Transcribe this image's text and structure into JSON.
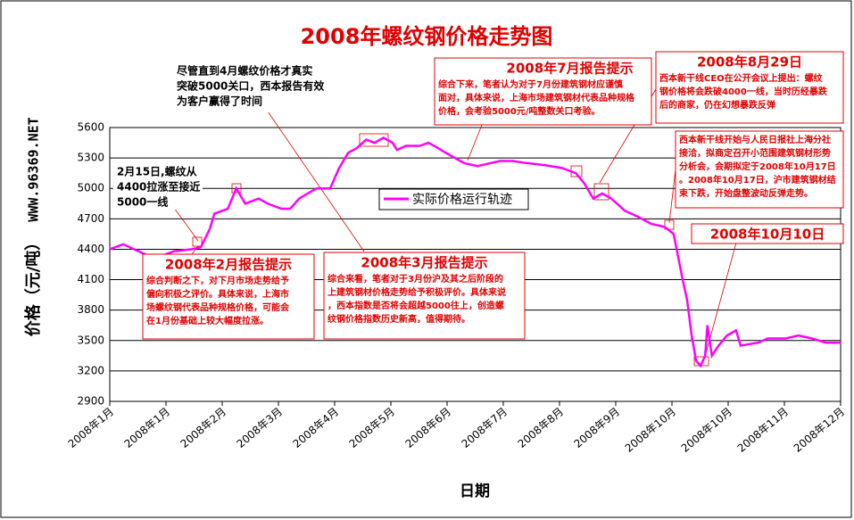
{
  "chart_data": {
    "type": "line",
    "title": "2008年螺纹钢价格走势图",
    "y_label": "价格（元/吨）",
    "watermark": "WWW.96369.NET",
    "x_label": "日期",
    "categories": [
      "2008年1月",
      "2008年1月",
      "2008年2月",
      "2008年3月",
      "2008年4月",
      "2008年5月",
      "2008年6月",
      "2008年7月",
      "2008年8月",
      "2008年9月",
      "2008年10月",
      "2008年10月",
      "2008年11月",
      "2008年12月"
    ],
    "xlim": [
      0,
      13
    ],
    "ylim": [
      2900,
      5600
    ],
    "yticks": [
      2900,
      3200,
      3500,
      3800,
      4100,
      4400,
      4700,
      5000,
      5300,
      5600
    ],
    "grid": true,
    "series": [
      {
        "name": "实际价格运行轨迹",
        "color": "#ff00ff",
        "x": [
          0,
          0.24,
          0.43,
          0.67,
          0.9,
          1.14,
          1.46,
          1.62,
          1.78,
          1.86,
          2.1,
          2.25,
          2.41,
          2.65,
          2.81,
          3.05,
          3.21,
          3.37,
          3.52,
          3.68,
          3.92,
          4.08,
          4.24,
          4.4,
          4.56,
          4.71,
          4.87,
          5.03,
          5.11,
          5.27,
          5.51,
          5.67,
          5.83,
          5.98,
          6.14,
          6.3,
          6.54,
          6.78,
          6.94,
          7.17,
          7.41,
          7.73,
          8.05,
          8.29,
          8.44,
          8.6,
          8.76,
          8.92,
          9.16,
          9.4,
          9.63,
          9.87,
          10.03,
          10.19,
          10.27,
          10.35,
          10.43,
          10.51,
          10.59,
          10.63,
          10.71,
          10.83,
          10.98,
          11.14,
          11.22,
          11.54,
          11.7,
          12.02,
          12.25,
          12.49,
          12.73,
          13
        ],
        "values": [
          4400,
          4450,
          4400,
          4340,
          4330,
          4380,
          4400,
          4420,
          4600,
          4750,
          4800,
          5000,
          4850,
          4900,
          4850,
          4800,
          4800,
          4900,
          4950,
          5000,
          5000,
          5200,
          5350,
          5400,
          5480,
          5450,
          5500,
          5450,
          5380,
          5420,
          5420,
          5450,
          5400,
          5350,
          5300,
          5250,
          5220,
          5250,
          5270,
          5270,
          5250,
          5230,
          5200,
          5150,
          5050,
          4900,
          4950,
          4900,
          4780,
          4720,
          4650,
          4620,
          4550,
          4100,
          3900,
          3550,
          3300,
          3250,
          3350,
          3650,
          3350,
          3450,
          3550,
          3600,
          3450,
          3480,
          3520,
          3520,
          3550,
          3520,
          3480,
          3480
        ]
      }
    ],
    "annotations": [
      {
        "lines": [
          "尽管直到4月螺纹价格才真实",
          "突破5000关口，西本报告有效",
          "为客户赢得了时间"
        ]
      },
      {
        "lines": [
          "2月15日,螺纹从",
          "4400拉涨至接近",
          "5000一线"
        ]
      },
      {
        "title": "2008年2月报告提示",
        "lines": [
          "综合判断之下，对下月市场走势给予",
          "偏向积极之评价。具体来说，上海市",
          "场螺纹钢代表品种规格价格，可能会",
          "在1月份基础上较大幅度拉涨。"
        ]
      },
      {
        "title": "2008年3月报告提示",
        "lines": [
          "综合来看，笔者对于3月份沪及其之后阶段的",
          "上建筑钢材价格走势给予积极评价。具体来说",
          "，西本指数是否将会超越5000往上，创造螺",
          "纹钢价格指数历史新高，值得期待。"
        ]
      },
      {
        "title": "2008年7月报告提示",
        "lines": [
          "综合下来，笔者认为对于7月份建筑钢材应谨慎",
          "面对，具体来说，上海市场建筑钢材代表品种规格",
          "价格，会考验5000元/吨整数关口考验。"
        ]
      },
      {
        "title": "2008年8月29日",
        "lines": [
          "西本新干线CEO在公开会议上提出：螺纹",
          "钢价格将会跌破4000一线，当时历经暴跌",
          "后的商家，仍在幻想暴跌反弹"
        ]
      },
      {
        "lines": [
          "西本新干线开始与人民日报社上海分社",
          "接洽，拟商定召开小范围建筑钢材形势",
          "分析会，会期拟定于2008年10月17日",
          "。2008年10月17日，沪市建筑钢材结",
          "束下跌，开始盘整波动反弹走势。"
        ]
      },
      {
        "title": "2008年10月10日",
        "lines": []
      }
    ]
  }
}
